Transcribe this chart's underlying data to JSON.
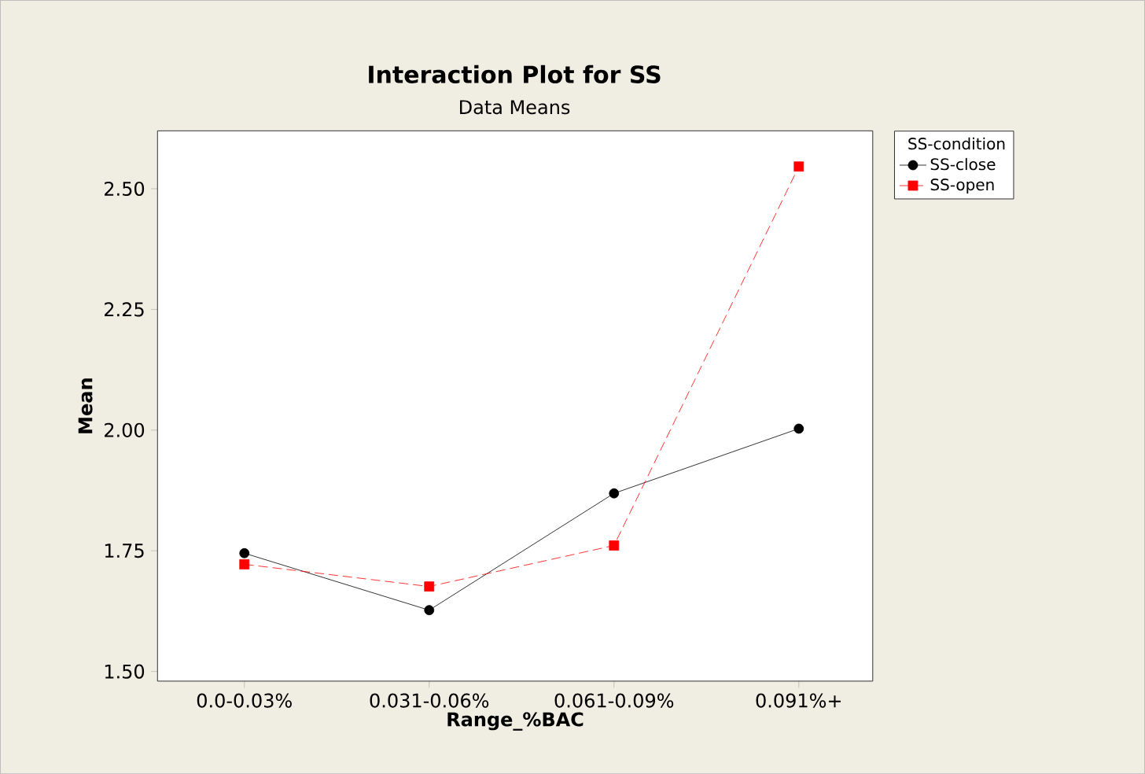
{
  "chart_data": {
    "type": "line",
    "title": "Interaction Plot for SS",
    "subtitle": "Data Means",
    "xlabel": "Range_%BAC",
    "ylabel": "Mean",
    "legend_title": "SS-condition",
    "categories": [
      "0.0-0.03%",
      "0.031-0.06%",
      "0.061-0.09%",
      "0.091%+"
    ],
    "series": [
      {
        "name": "SS-close",
        "color": "#000000",
        "marker": "circle",
        "line_style": "solid",
        "values": [
          1.745,
          1.627,
          1.869,
          2.003
        ]
      },
      {
        "name": "SS-open",
        "color": "#ff0000",
        "marker": "square",
        "line_style": "dashed",
        "values": [
          1.722,
          1.676,
          1.761,
          2.546
        ]
      }
    ],
    "ylim": [
      1.48,
      2.62
    ],
    "yticks": [
      {
        "value": 1.5,
        "label": "1.50"
      },
      {
        "value": 1.75,
        "label": "1.75"
      },
      {
        "value": 2.0,
        "label": "2.00"
      },
      {
        "value": 2.25,
        "label": "2.25"
      },
      {
        "value": 2.5,
        "label": "2.50"
      }
    ],
    "grid": false,
    "legend": "top right"
  }
}
